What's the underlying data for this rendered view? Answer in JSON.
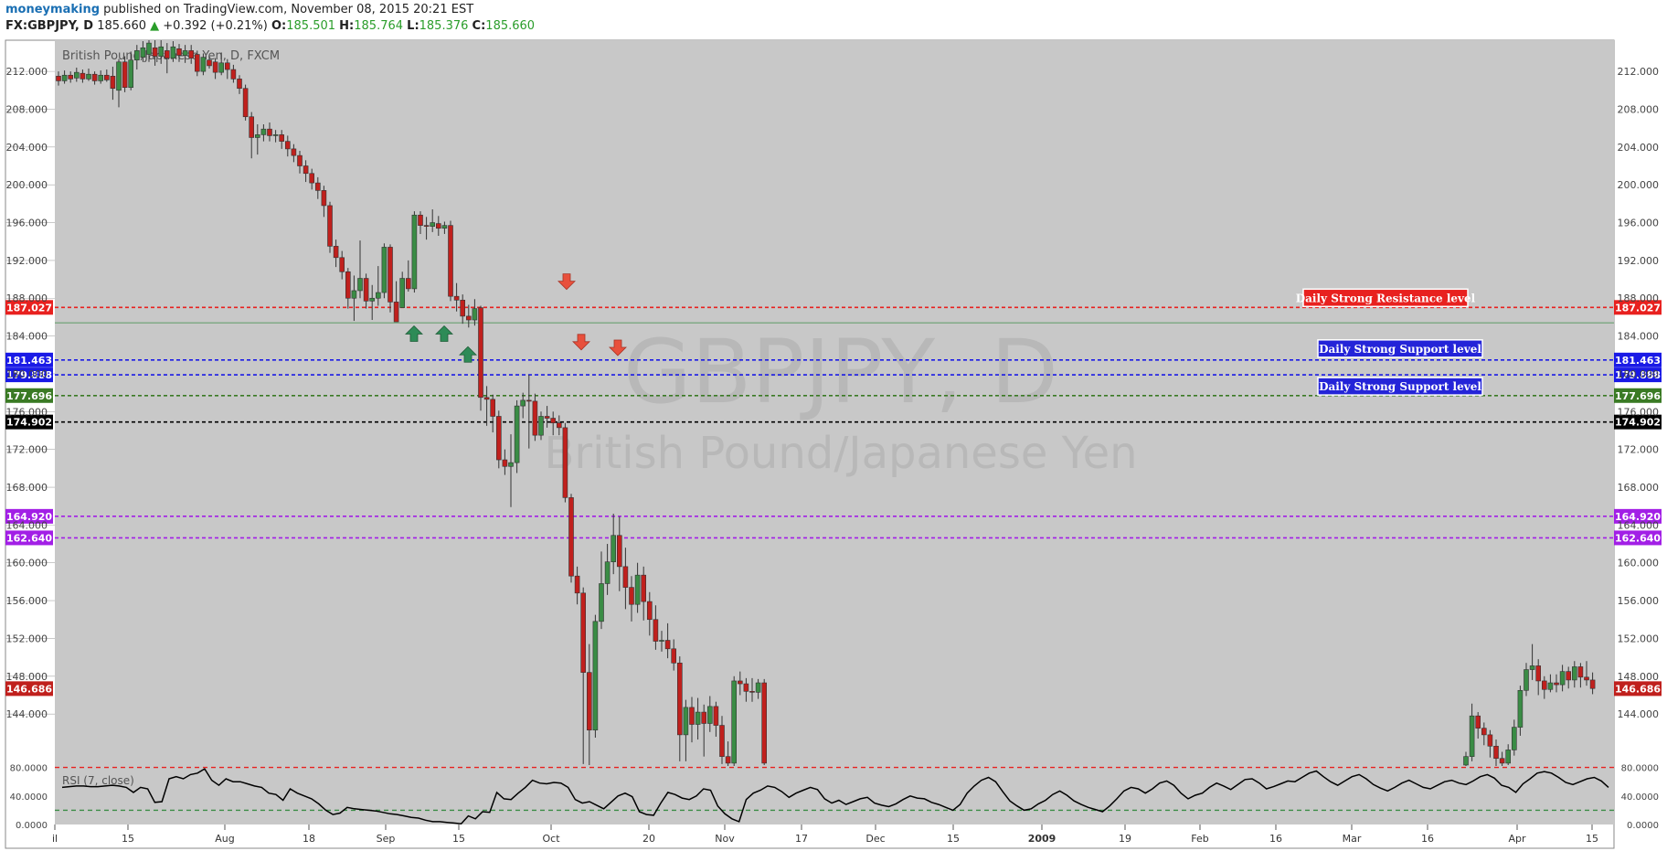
{
  "header": {
    "author": "moneymaking",
    "published_text": "published on TradingView.com, November 08, 2015 20:21 EST",
    "symbol": "FX:GBPJPY, D",
    "last": "185.660",
    "change": "+0.392 (+0.21%)",
    "open_label": "O:",
    "open": "185.501",
    "high_label": "H:",
    "high": "185.764",
    "low_label": "L:",
    "low": "185.376",
    "close_label": "C:",
    "close": "185.660"
  },
  "chart_data": {
    "type": "candlestick",
    "title": "British Pound/Japanese Yen, D, FXCM",
    "watermark_symbol": "GBPJPY, D",
    "watermark_name": "British Pound/Japanese Yen",
    "ylim": [
      138.5,
      215.3
    ],
    "y_ticks": [
      "212.000",
      "208.000",
      "204.000",
      "200.000",
      "196.000",
      "192.000",
      "188.000",
      "184.000",
      "180.000",
      "176.000",
      "172.000",
      "168.000",
      "164.000",
      "160.000",
      "156.000",
      "152.000",
      "148.000",
      "144.000"
    ],
    "x_ticks": [
      "il",
      "15",
      "Aug",
      "18",
      "Sep",
      "15",
      "Oct",
      "20",
      "Nov",
      "17",
      "Dec",
      "15",
      "2009",
      "19",
      "Feb",
      "16",
      "Mar",
      "16",
      "Apr",
      "15"
    ],
    "colors": {
      "bull": "#3a8c45",
      "bear": "#c0201d",
      "background": "#c8c8c8"
    },
    "levels": [
      {
        "price": 187.027,
        "label": "187.027",
        "color": "#e8211f",
        "text": "Daily Strong Resistance level"
      },
      {
        "price": 181.463,
        "label": "181.463",
        "color": "#1a1ae6",
        "text": "Daily Strong Support level"
      },
      {
        "price": 179.888,
        "label": "179.888",
        "color": "#1a1ae6",
        "text": "Daily Strong Support level"
      },
      {
        "price": 177.696,
        "label": "177.696",
        "color": "#3a7a24",
        "text": ""
      },
      {
        "price": 174.902,
        "label": "174.902",
        "color": "#000000",
        "text": ""
      },
      {
        "price": 164.92,
        "label": "164.920",
        "color": "#a21fe6",
        "text": ""
      },
      {
        "price": 162.64,
        "label": "162.640",
        "color": "#a21fe6",
        "text": ""
      }
    ],
    "last_price_badge": {
      "price": 146.686,
      "label": "146.686",
      "color": "#c0201d"
    },
    "candles_jul_dec_2008": [
      [
        211.5,
        211.0,
        212.0,
        210.5
      ],
      [
        211.0,
        211.6,
        212.1,
        210.7
      ],
      [
        211.6,
        211.2,
        212.0,
        210.8
      ],
      [
        211.3,
        211.9,
        212.4,
        210.9
      ],
      [
        211.8,
        211.2,
        212.2,
        210.8
      ],
      [
        211.2,
        211.7,
        212.3,
        211.0
      ],
      [
        211.7,
        211.0,
        212.0,
        210.6
      ],
      [
        211.0,
        211.6,
        212.1,
        210.7
      ],
      [
        211.6,
        211.1,
        212.2,
        210.9
      ],
      [
        211.5,
        210.2,
        212.5,
        209.0
      ],
      [
        210.0,
        213.0,
        213.3,
        208.2
      ],
      [
        213.0,
        210.3,
        213.6,
        209.8
      ],
      [
        210.3,
        213.2,
        214.1,
        210.0
      ],
      [
        213.2,
        214.2,
        214.8,
        212.2
      ],
      [
        213.5,
        214.5,
        215.2,
        213.0
      ],
      [
        213.8,
        215.0,
        215.3,
        213.0
      ],
      [
        214.5,
        213.6,
        215.3,
        212.6
      ],
      [
        213.6,
        214.6,
        215.3,
        212.8
      ],
      [
        214.2,
        213.4,
        215.0,
        211.8
      ],
      [
        213.4,
        214.6,
        215.2,
        213.0
      ],
      [
        214.4,
        213.7,
        214.9,
        213.0
      ],
      [
        213.7,
        214.2,
        214.8,
        212.9
      ],
      [
        214.2,
        213.4,
        214.8,
        212.8
      ],
      [
        213.8,
        212.0,
        214.2,
        211.5
      ],
      [
        212.0,
        213.5,
        213.9,
        211.6
      ],
      [
        213.2,
        212.6,
        213.6,
        212.3
      ],
      [
        213.0,
        211.9,
        213.4,
        211.2
      ],
      [
        211.9,
        212.9,
        214.0,
        211.6
      ],
      [
        212.9,
        212.2,
        213.3,
        211.2
      ],
      [
        212.2,
        211.2,
        212.7,
        210.8
      ],
      [
        211.2,
        210.2,
        211.6,
        209.6
      ],
      [
        210.2,
        207.2,
        210.6,
        206.8
      ],
      [
        207.2,
        205.0,
        207.7,
        202.8
      ],
      [
        205.0,
        205.3,
        206.4,
        203.2
      ],
      [
        205.3,
        205.9,
        206.4,
        204.6
      ],
      [
        205.9,
        205.2,
        206.6,
        204.6
      ],
      [
        205.2,
        205.3,
        205.8,
        204.5
      ],
      [
        205.3,
        204.6,
        205.8,
        203.8
      ],
      [
        204.6,
        203.8,
        205.2,
        203.0
      ],
      [
        203.8,
        203.1,
        204.3,
        202.4
      ],
      [
        203.1,
        202.0,
        203.6,
        201.2
      ],
      [
        202.0,
        201.2,
        202.6,
        200.3
      ],
      [
        201.2,
        200.2,
        201.7,
        199.5
      ],
      [
        200.2,
        199.4,
        200.8,
        198.5
      ],
      [
        199.4,
        197.8,
        199.9,
        196.6
      ],
      [
        197.8,
        193.5,
        198.2,
        192.8
      ],
      [
        193.5,
        192.3,
        194.2,
        191.3
      ],
      [
        192.3,
        190.8,
        193.0,
        190.0
      ],
      [
        190.8,
        188.0,
        191.2,
        186.9
      ],
      [
        188.0,
        188.8,
        190.4,
        185.6
      ],
      [
        188.8,
        190.1,
        194.1,
        188.0
      ],
      [
        190.1,
        187.7,
        190.6,
        186.9
      ],
      [
        187.7,
        188.0,
        189.4,
        185.7
      ],
      [
        188.0,
        188.6,
        191.4,
        187.2
      ],
      [
        188.6,
        193.4,
        193.8,
        188.0
      ],
      [
        193.4,
        187.6,
        193.7,
        186.5
      ],
      [
        187.6,
        185.5,
        189.8,
        185.5
      ],
      [
        187.0,
        190.1,
        190.8,
        187.0
      ],
      [
        190.1,
        189.0,
        192.0,
        188.7
      ],
      [
        189.0,
        196.8,
        197.2,
        188.6
      ],
      [
        196.8,
        195.7,
        197.2,
        194.8
      ],
      [
        195.7,
        195.6,
        196.6,
        194.2
      ],
      [
        195.6,
        196.0,
        197.4,
        195.0
      ],
      [
        195.9,
        195.4,
        196.7,
        194.6
      ],
      [
        195.4,
        195.7,
        196.1,
        194.8
      ],
      [
        195.7,
        188.2,
        196.2,
        187.7
      ],
      [
        188.2,
        187.8,
        189.6,
        186.6
      ],
      [
        187.8,
        186.1,
        188.4,
        185.3
      ],
      [
        186.1,
        185.7,
        187.3,
        184.9
      ],
      [
        185.7,
        186.9,
        187.9,
        185.1
      ],
      [
        187.0,
        177.5,
        187.2,
        176.1
      ],
      [
        177.5,
        177.3,
        178.7,
        174.5
      ],
      [
        177.3,
        175.5,
        177.8,
        173.8
      ],
      [
        175.5,
        170.9,
        176.1,
        170.0
      ],
      [
        170.9,
        170.2,
        172.0,
        169.3
      ],
      [
        170.2,
        170.6,
        173.6,
        165.9
      ],
      [
        170.6,
        176.6,
        177.2,
        169.5
      ],
      [
        176.6,
        177.2,
        178.0,
        175.3
      ],
      [
        177.2,
        177.1,
        179.9,
        172.1
      ],
      [
        177.1,
        173.5,
        177.9,
        172.9
      ],
      [
        173.5,
        175.5,
        176.0,
        173.0
      ],
      [
        175.5,
        175.3,
        176.6,
        174.3
      ],
      [
        175.3,
        174.8,
        176.0,
        173.5
      ],
      [
        174.8,
        174.3,
        175.6,
        173.5
      ],
      [
        174.3,
        166.9,
        174.8,
        166.4
      ],
      [
        166.9,
        158.6,
        167.3,
        157.9
      ],
      [
        158.6,
        156.8,
        159.6,
        155.6
      ],
      [
        156.8,
        148.4,
        157.4,
        138.7
      ],
      [
        148.4,
        142.3,
        151.4,
        138.6
      ],
      [
        142.3,
        153.8,
        154.5,
        141.5
      ],
      [
        153.8,
        157.8,
        161.2,
        153.0
      ],
      [
        157.8,
        160.1,
        162.0,
        156.6
      ],
      [
        160.1,
        162.9,
        165.2,
        158.8
      ],
      [
        162.9,
        159.6,
        164.9,
        157.0
      ],
      [
        159.6,
        157.4,
        161.6,
        155.1
      ],
      [
        157.4,
        155.6,
        158.6,
        153.8
      ],
      [
        155.6,
        158.7,
        160.0,
        154.7
      ],
      [
        158.7,
        155.9,
        159.6,
        153.9
      ],
      [
        155.9,
        154.0,
        156.9,
        152.3
      ],
      [
        154.0,
        151.7,
        155.5,
        150.8
      ],
      [
        151.7,
        151.8,
        152.8,
        150.6
      ],
      [
        151.8,
        150.9,
        153.6,
        149.9
      ],
      [
        150.9,
        149.4,
        151.9,
        148.6
      ],
      [
        149.4,
        141.8,
        150.1,
        139.0
      ],
      [
        141.8,
        144.7,
        145.5,
        139.0
      ],
      [
        144.7,
        142.9,
        145.8,
        141.0
      ],
      [
        142.9,
        144.2,
        145.7,
        141.3
      ],
      [
        144.2,
        143.0,
        145.0,
        139.5
      ],
      [
        143.0,
        144.8,
        145.9,
        142.1
      ],
      [
        144.8,
        142.8,
        145.3,
        141.6
      ],
      [
        142.8,
        139.5,
        143.8,
        138.7
      ],
      [
        139.5,
        138.8,
        141.1,
        138.4
      ],
      [
        138.8,
        147.5,
        148.0,
        138.5
      ],
      [
        147.5,
        147.2,
        148.5,
        146.0
      ],
      [
        147.2,
        146.4,
        147.8,
        145.3
      ],
      [
        146.4,
        146.3,
        147.8,
        145.3
      ],
      [
        146.3,
        147.3,
        147.7,
        145.6
      ],
      [
        147.3,
        138.8,
        147.7,
        138.6
      ]
    ],
    "candles_mar_apr_2009": [
      [
        138.6,
        139.5,
        140.0,
        138.5
      ],
      [
        139.5,
        143.8,
        145.1,
        139.0
      ],
      [
        143.8,
        142.5,
        144.2,
        141.4
      ],
      [
        142.5,
        141.8,
        143.1,
        140.7
      ],
      [
        141.8,
        140.6,
        142.3,
        139.4
      ],
      [
        140.6,
        139.3,
        141.3,
        138.5
      ],
      [
        139.3,
        138.8,
        140.0,
        138.5
      ],
      [
        138.8,
        140.2,
        140.8,
        138.6
      ],
      [
        140.2,
        142.6,
        143.4,
        139.6
      ],
      [
        142.6,
        146.5,
        147.0,
        141.7
      ],
      [
        146.5,
        148.7,
        149.4,
        145.9
      ],
      [
        148.7,
        149.1,
        151.4,
        147.6
      ],
      [
        149.1,
        147.5,
        149.8,
        146.0
      ],
      [
        147.5,
        146.6,
        148.0,
        145.6
      ],
      [
        146.6,
        147.3,
        148.2,
        146.3
      ],
      [
        147.3,
        147.1,
        148.2,
        146.3
      ],
      [
        147.1,
        148.5,
        149.2,
        146.4
      ],
      [
        148.5,
        147.6,
        149.0,
        146.7
      ],
      [
        147.6,
        149.0,
        149.6,
        146.8
      ],
      [
        149.0,
        147.9,
        149.4,
        146.8
      ],
      [
        147.9,
        147.6,
        149.6,
        147.0
      ],
      [
        147.6,
        146.7,
        148.4,
        146.1
      ]
    ],
    "bull_arrows": [
      "Sep 8",
      "Sep 12",
      "Sep 16"
    ],
    "bear_arrows": [
      "Oct 1",
      "Oct 3",
      "Oct 8"
    ],
    "rsi": {
      "label": "RSI (7, close)",
      "ylim": [
        0,
        82
      ],
      "y_ticks": [
        "80.0000",
        "40.0000",
        "0.0000"
      ],
      "levels": [
        80,
        20
      ],
      "values": [
        52,
        53,
        54,
        54,
        53,
        53,
        54,
        55,
        54,
        52,
        45,
        52,
        50,
        31,
        32,
        64,
        67,
        64,
        70,
        72,
        78,
        62,
        55,
        64,
        60,
        60,
        57,
        54,
        52,
        44,
        42,
        34,
        50,
        44,
        40,
        36,
        29,
        20,
        14,
        16,
        24,
        22,
        21,
        20,
        19,
        17,
        15,
        14,
        12,
        10,
        9,
        6,
        4,
        4,
        3,
        2,
        1,
        12,
        8,
        18,
        17,
        45,
        36,
        35,
        44,
        52,
        62,
        58,
        57,
        59,
        58,
        52,
        35,
        30,
        32,
        27,
        22,
        31,
        40,
        44,
        39,
        18,
        14,
        13,
        30,
        45,
        42,
        37,
        35,
        40,
        50,
        48,
        26,
        15,
        8,
        4,
        35,
        44,
        48,
        54,
        52,
        46,
        38,
        44,
        48,
        52,
        49,
        36,
        30,
        34,
        28,
        32,
        36,
        38,
        30,
        27,
        25,
        29,
        35,
        40,
        37,
        36,
        31,
        28,
        24,
        20,
        28,
        44,
        54,
        62,
        66,
        60,
        46,
        33,
        26,
        20,
        22,
        29,
        34,
        42,
        47,
        41,
        33,
        28,
        24,
        21,
        18,
        26,
        36,
        47,
        52,
        50,
        44,
        50,
        58,
        61,
        55,
        44,
        36,
        41,
        44,
        52,
        58,
        54,
        49,
        56,
        63,
        64,
        58,
        50,
        53,
        57,
        61,
        60,
        66,
        72,
        75,
        67,
        60,
        55,
        61,
        67,
        70,
        64,
        56,
        51,
        47,
        52,
        58,
        62,
        57,
        52,
        50,
        55,
        60,
        62,
        58,
        56,
        61,
        67,
        70,
        65,
        55,
        52,
        45,
        57,
        64,
        72,
        74,
        72,
        66,
        59,
        56,
        60,
        64,
        66,
        61,
        52
      ]
    }
  }
}
